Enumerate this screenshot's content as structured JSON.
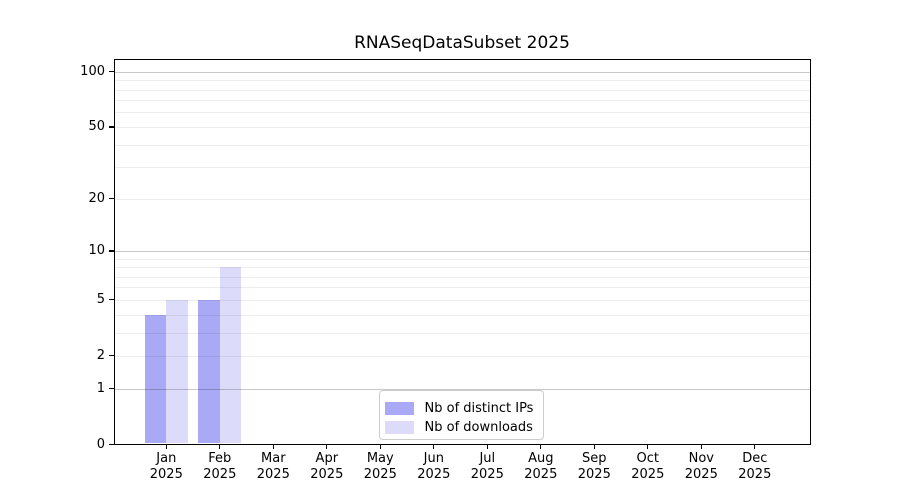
{
  "chart_data": {
    "type": "bar",
    "title": "RNASeqDataSubset 2025",
    "categories": [
      "Jan 2025",
      "Feb 2025",
      "Mar 2025",
      "Apr 2025",
      "May 2025",
      "Jun 2025",
      "Jul 2025",
      "Aug 2025",
      "Sep 2025",
      "Oct 2025",
      "Nov 2025",
      "Dec 2025"
    ],
    "series": [
      {
        "name": "Nb of distinct IPs",
        "color": "#a9a9f5",
        "values": [
          4,
          5,
          0,
          0,
          0,
          0,
          0,
          0,
          0,
          0,
          0,
          0
        ]
      },
      {
        "name": "Nb of downloads",
        "color": "#dcdcfa",
        "values": [
          5,
          8,
          0,
          0,
          0,
          0,
          0,
          0,
          0,
          0,
          0,
          0
        ]
      }
    ],
    "xlabel": "",
    "ylabel": "",
    "yscale": "log1p",
    "yticks": [
      0,
      1,
      2,
      5,
      10,
      20,
      50,
      100
    ],
    "ylim": [
      0,
      118
    ],
    "grid": true,
    "grid_minor": [
      2,
      3,
      4,
      5,
      6,
      7,
      8,
      9,
      20,
      30,
      40,
      50,
      60,
      70,
      80,
      90
    ],
    "grid_major": [
      1,
      10,
      100
    ],
    "legend_position": "lower center",
    "colors": {
      "background": "#ffffff",
      "spine": "#000000",
      "text": "#000000",
      "grid_minor": "rgba(0,0,0,0.07)",
      "grid_major": "rgba(0,0,0,0.21)",
      "legend_border": "#cccccc"
    }
  }
}
